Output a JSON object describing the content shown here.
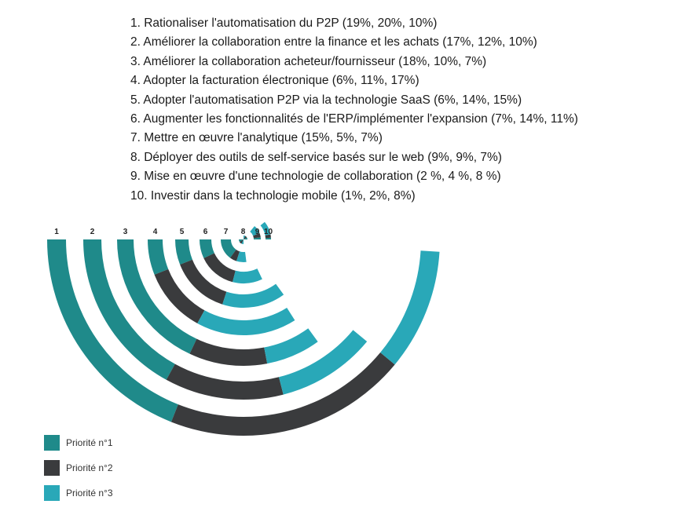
{
  "items": [
    "1. Rationaliser l'automatisation du P2P (19%, 20%, 10%)",
    "2. Améliorer la collaboration entre la finance et les achats (17%, 12%, 10%)",
    "3. Améliorer la collaboration acheteur/fournisseur (18%, 10%, 7%)",
    "4. Adopter la facturation électronique (6%, 11%, 17%)",
    "5. Adopter l'automatisation P2P via la technologie SaaS (6%, 14%, 15%)",
    "6. Augmenter les fonctionnalités de l'ERP/implémenter l'expansion (7%, 14%, 11%)",
    "7. Mettre en œuvre l'analytique (15%, 5%, 7%)",
    "8. Déployer des outils de self-service basés sur le web (9%, 9%, 7%)",
    "9. Mise en œuvre d'une technologie de collaboration (2 %, 4 %, 8 %)",
    "10. Investir dans la technologie mobile (1%, 2%, 8%)"
  ],
  "chart_data": {
    "type": "radial-stacked-bar",
    "categories": [
      "1",
      "2",
      "3",
      "4",
      "5",
      "6",
      "7",
      "8",
      "9",
      "10"
    ],
    "series": [
      {
        "name": "Priorité n°1",
        "color": "#1f8a8a",
        "values": [
          19,
          17,
          18,
          6,
          6,
          7,
          15,
          9,
          2,
          1
        ]
      },
      {
        "name": "Priorité n°2",
        "color": "#3a3b3d",
        "values": [
          20,
          12,
          10,
          11,
          14,
          14,
          5,
          9,
          4,
          2
        ]
      },
      {
        "name": "Priorité n°3",
        "color": "#29a8b8",
        "values": [
          10,
          10,
          7,
          17,
          15,
          11,
          7,
          7,
          8,
          8
        ]
      }
    ],
    "legend": "bottom-left"
  }
}
